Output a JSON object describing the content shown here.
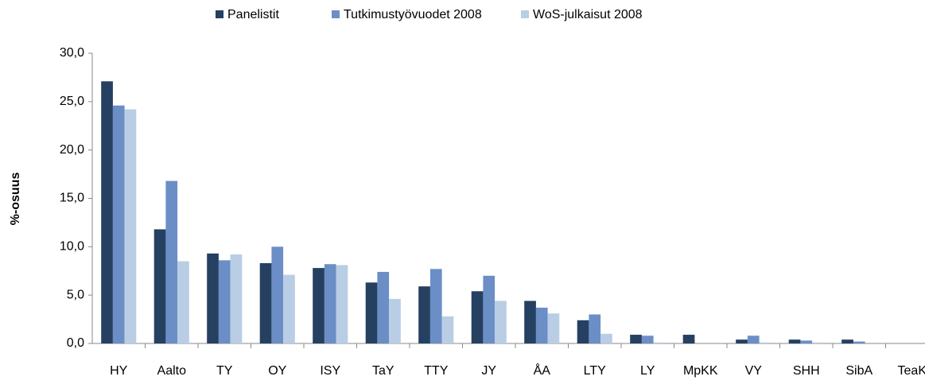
{
  "chart_data": {
    "type": "bar",
    "categories": [
      "HY",
      "Aalto",
      "TY",
      "OY",
      "ISY",
      "TaY",
      "TTY",
      "JY",
      "ÅA",
      "LTY",
      "LY",
      "MpKK",
      "VY",
      "SHH",
      "SibA",
      "TeaK"
    ],
    "series": [
      {
        "name": "Panelistit",
        "color": "#254061",
        "values": [
          27.1,
          11.8,
          9.3,
          8.3,
          7.8,
          6.3,
          5.9,
          5.4,
          4.4,
          2.4,
          0.9,
          0.9,
          0.4,
          0.4,
          0.4,
          0
        ]
      },
      {
        "name": "Tutkimustyövuodet 2008",
        "color": "#6b8ec6",
        "values": [
          24.6,
          16.8,
          8.6,
          10.0,
          8.2,
          7.4,
          7.7,
          7.0,
          3.7,
          3.0,
          0.8,
          0,
          0.8,
          0.3,
          0.2,
          0
        ]
      },
      {
        "name": "WoS-julkaisut 2008",
        "color": "#b9cde5",
        "values": [
          24.2,
          8.5,
          9.2,
          7.1,
          8.1,
          4.6,
          2.8,
          4.4,
          3.1,
          1.0,
          0.1,
          0,
          0.1,
          0.1,
          0,
          0
        ]
      }
    ],
    "y_label": "%-osuus",
    "ylim": [
      0,
      30
    ],
    "yticks": [
      {
        "value": 0,
        "label": "0,0"
      },
      {
        "value": 5,
        "label": "5,0"
      },
      {
        "value": 10,
        "label": "10,0"
      },
      {
        "value": 15,
        "label": "15,0"
      },
      {
        "value": 20,
        "label": "20,0"
      },
      {
        "value": 25,
        "label": "25,0"
      },
      {
        "value": 30,
        "label": "30,0"
      }
    ],
    "grid": false,
    "legend": "top"
  }
}
